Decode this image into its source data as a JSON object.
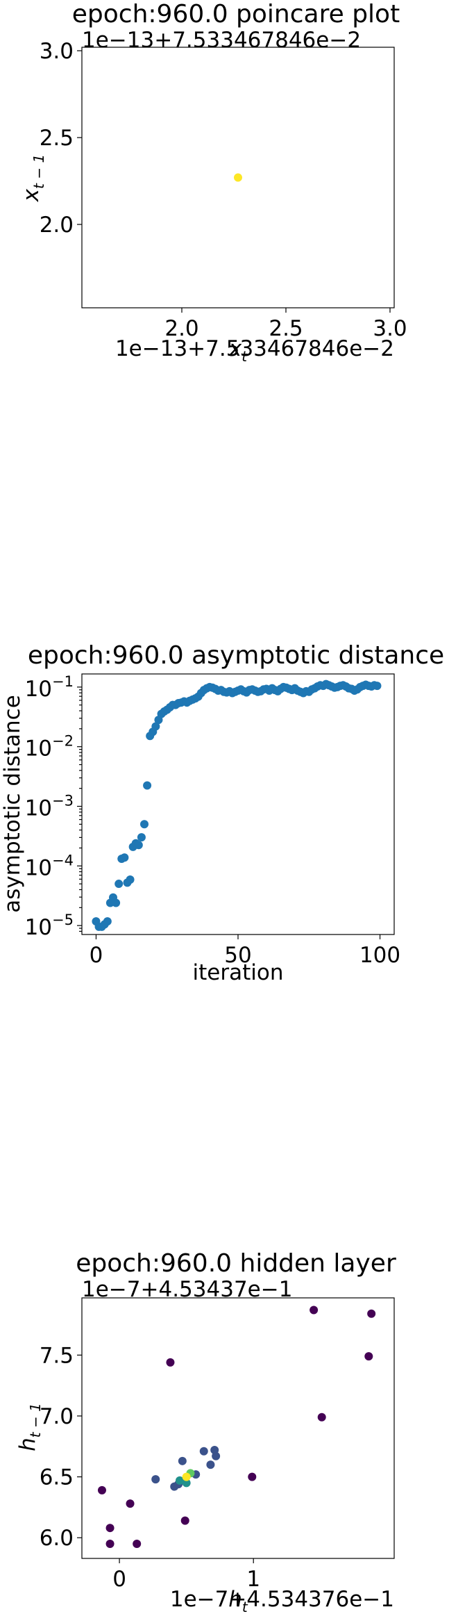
{
  "charts": [
    {
      "title": "epoch:960.0 poincare plot",
      "type": "scatter",
      "xlabel_base": "x",
      "xlabel_sub": "t",
      "ylabel_base": "x",
      "ylabel_sub": "t − 1",
      "x_offset_text": "1e−13+7.533467846e−2",
      "y_offset_text": "1e−13+7.533467846e−2",
      "xlim": [
        1.52,
        3.02
      ],
      "ylim": [
        1.52,
        3.02
      ],
      "xticks": [
        2.0,
        2.5,
        3.0
      ],
      "xtick_labels": [
        "2.0",
        "2.5",
        "3.0"
      ],
      "yticks": [
        2.0,
        2.5,
        3.0
      ],
      "ytick_labels": [
        "2.0",
        "2.5",
        "3.0"
      ],
      "points": [
        {
          "x": 2.27,
          "y": 2.27,
          "color": "#fde725"
        }
      ]
    },
    {
      "title": "epoch:960.0 asymptotic distance",
      "type": "scatter",
      "log_y": true,
      "xlabel": "iteration",
      "ylabel": "asymptotic distance",
      "xlim": [
        -5,
        105
      ],
      "ylim_log10": [
        -5.15,
        -0.78
      ],
      "xticks": [
        0,
        50,
        100
      ],
      "xtick_labels": [
        "0",
        "50",
        "100"
      ],
      "yticks_log10": [
        -5,
        -4,
        -3,
        -2,
        -1
      ],
      "ytick_base": "10",
      "ytick_exps": [
        "−5",
        "−4",
        "−3",
        "−2",
        "−1"
      ],
      "point_color": "#1f77b4",
      "x": [
        0,
        1,
        2,
        3,
        4,
        5,
        6,
        7,
        8,
        9,
        10,
        11,
        12,
        13,
        14,
        15,
        16,
        17,
        18,
        19,
        20,
        21,
        22,
        23,
        24,
        25,
        26,
        27,
        28,
        29,
        30,
        31,
        32,
        33,
        34,
        35,
        36,
        37,
        38,
        39,
        40,
        41,
        42,
        43,
        44,
        45,
        46,
        47,
        48,
        49,
        50,
        51,
        52,
        53,
        54,
        55,
        56,
        57,
        58,
        59,
        60,
        61,
        62,
        63,
        64,
        65,
        66,
        67,
        68,
        69,
        70,
        71,
        72,
        73,
        74,
        75,
        76,
        77,
        78,
        79,
        80,
        81,
        82,
        83,
        84,
        85,
        86,
        87,
        88,
        89,
        90,
        91,
        92,
        93,
        94,
        95,
        96,
        97,
        98,
        99
      ],
      "y": [
        -4.93,
        -5.02,
        -5.02,
        -4.98,
        -4.93,
        -4.62,
        -4.53,
        -4.62,
        -4.3,
        -3.88,
        -3.86,
        -4.28,
        -4.23,
        -3.68,
        -3.62,
        -3.65,
        -3.52,
        -3.3,
        -2.65,
        -1.82,
        -1.75,
        -1.66,
        -1.55,
        -1.45,
        -1.41,
        -1.38,
        -1.34,
        -1.3,
        -1.3,
        -1.27,
        -1.26,
        -1.24,
        -1.26,
        -1.23,
        -1.21,
        -1.19,
        -1.16,
        -1.1,
        -1.05,
        -1.02,
        -1.0,
        -1.01,
        -1.03,
        -1.06,
        -1.05,
        -1.08,
        -1.09,
        -1.07,
        -1.1,
        -1.08,
        -1.06,
        -1.04,
        -1.07,
        -1.09,
        -1.05,
        -1.04,
        -1.06,
        -1.08,
        -1.07,
        -1.04,
        -1.03,
        -1.06,
        -1.02,
        -1.05,
        -1.07,
        -1.03,
        -1.0,
        -1.01,
        -1.03,
        -1.05,
        -1.02,
        -1.06,
        -1.08,
        -1.1,
        -1.07,
        -1.08,
        -1.04,
        -1.02,
        -0.99,
        -0.97,
        -0.98,
        -0.95,
        -0.97,
        -0.99,
        -1.01,
        -1.0,
        -0.98,
        -0.97,
        -0.99,
        -1.02,
        -1.03,
        -1.06,
        -1.04,
        -1.0,
        -0.98,
        -0.96,
        -0.98,
        -0.99,
        -0.97,
        -0.98
      ]
    },
    {
      "title": "epoch:960.0 hidden layer",
      "type": "scatter",
      "xlabel_base": "h",
      "xlabel_sub": "t",
      "ylabel_base": "h",
      "ylabel_sub": "t − 1",
      "x_offset_text": "1e−7+4.534376e−1",
      "y_offset_text": "1e−7+4.53437e−1",
      "xlim": [
        -0.28,
        2.05
      ],
      "ylim": [
        5.83,
        7.97
      ],
      "xticks": [
        0,
        1
      ],
      "xtick_labels": [
        "0",
        "1"
      ],
      "yticks": [
        6.0,
        6.5,
        7.0,
        7.5
      ],
      "ytick_labels": [
        "6.0",
        "6.5",
        "7.0",
        "7.5"
      ],
      "points": [
        {
          "x": 1.45,
          "y": 7.87,
          "color": "#440154"
        },
        {
          "x": 1.88,
          "y": 7.84,
          "color": "#440154"
        },
        {
          "x": 1.86,
          "y": 7.49,
          "color": "#440154"
        },
        {
          "x": 0.38,
          "y": 7.44,
          "color": "#440154"
        },
        {
          "x": 1.51,
          "y": 6.99,
          "color": "#440154"
        },
        {
          "x": 0.99,
          "y": 6.5,
          "color": "#440154"
        },
        {
          "x": -0.13,
          "y": 6.39,
          "color": "#440154"
        },
        {
          "x": 0.08,
          "y": 6.28,
          "color": "#440154"
        },
        {
          "x": -0.07,
          "y": 6.08,
          "color": "#440154"
        },
        {
          "x": 0.49,
          "y": 6.14,
          "color": "#440154"
        },
        {
          "x": -0.07,
          "y": 5.95,
          "color": "#440154"
        },
        {
          "x": 0.13,
          "y": 5.95,
          "color": "#440154"
        },
        {
          "x": 0.27,
          "y": 6.48,
          "color": "#3b528b"
        },
        {
          "x": 0.47,
          "y": 6.63,
          "color": "#3b528b"
        },
        {
          "x": 0.63,
          "y": 6.71,
          "color": "#3b528b"
        },
        {
          "x": 0.71,
          "y": 6.72,
          "color": "#3b528b"
        },
        {
          "x": 0.72,
          "y": 6.67,
          "color": "#3b528b"
        },
        {
          "x": 0.68,
          "y": 6.6,
          "color": "#3b528b"
        },
        {
          "x": 0.57,
          "y": 6.52,
          "color": "#3b528b"
        },
        {
          "x": 0.41,
          "y": 6.42,
          "color": "#3b528b"
        },
        {
          "x": 0.44,
          "y": 6.44,
          "color": "#3b528b"
        },
        {
          "x": 0.5,
          "y": 6.45,
          "color": "#21918c"
        },
        {
          "x": 0.45,
          "y": 6.47,
          "color": "#21918c"
        },
        {
          "x": 0.53,
          "y": 6.53,
          "color": "#5ec962"
        },
        {
          "x": 0.5,
          "y": 6.5,
          "color": "#fde725"
        }
      ]
    }
  ]
}
